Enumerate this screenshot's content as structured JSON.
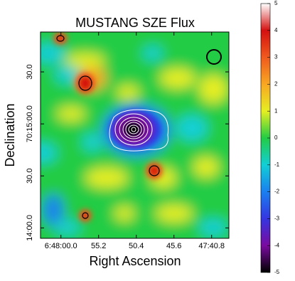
{
  "chart_data": {
    "type": "heatmap",
    "title": "MUSTANG SZE Flux",
    "xlabel": "Right Ascension",
    "ylabel": "Declination",
    "xlim": [
      24482.6,
      24458.6
    ],
    "xticks": [
      {
        "value": 24480,
        "label": "6:48:00.0"
      },
      {
        "value": 24475.2,
        "label": "55.2"
      },
      {
        "value": 24470.4,
        "label": "50.4"
      },
      {
        "value": 24465.6,
        "label": "45.6"
      },
      {
        "value": 24460.8,
        "label": "47:40.8"
      }
    ],
    "ylim": [
      252834,
      252953
    ],
    "yticks": [
      {
        "value": 252930,
        "label": "30.0"
      },
      {
        "value": 252900,
        "label": "70:15:00.0"
      },
      {
        "value": 252870,
        "label": "30.0"
      },
      {
        "value": 252840,
        "label": "14:00.0"
      }
    ],
    "zlim": [
      -5,
      5
    ],
    "zticks": [
      -5,
      -4,
      -3,
      -2,
      -1,
      0,
      1,
      2,
      3,
      4,
      5
    ],
    "colormap": [
      "#000000",
      "#7a0aa0",
      "#3535e0",
      "#1a7ff0",
      "#12cfd6",
      "#22cc44",
      "#e6ee22",
      "#f8a822",
      "#f05a1e",
      "#d41010",
      "#ffffff"
    ]
  }
}
